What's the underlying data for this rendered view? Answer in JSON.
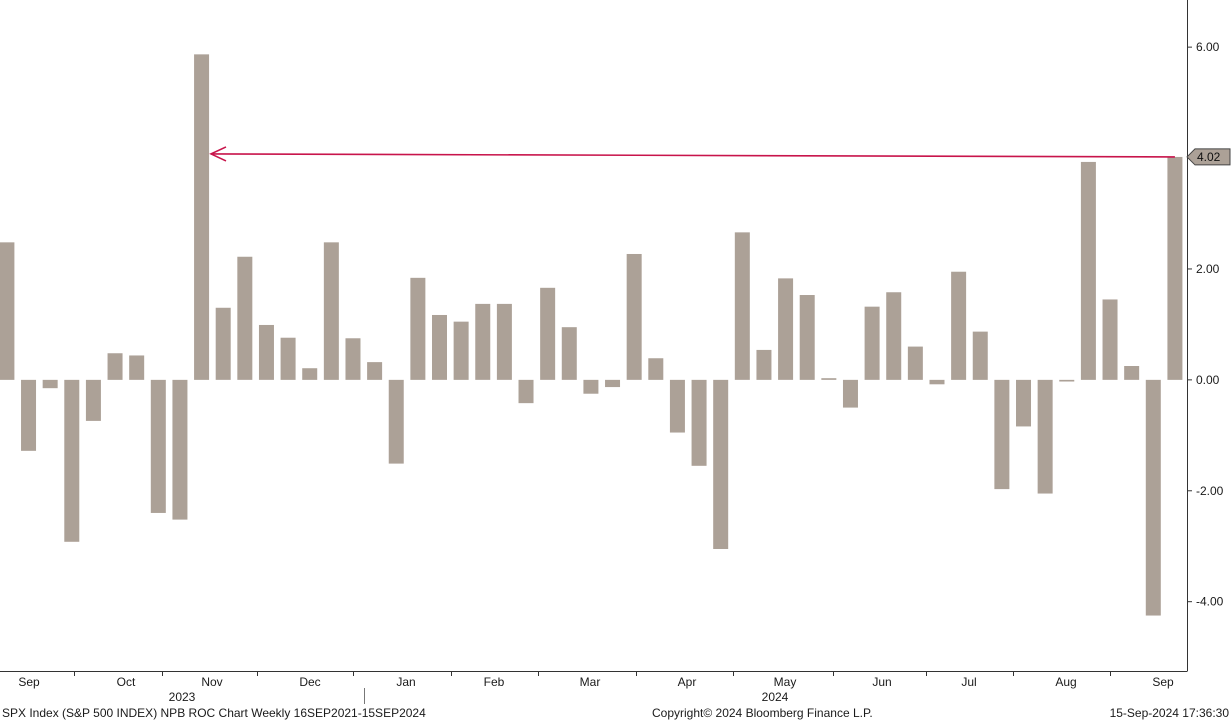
{
  "footer": {
    "left": "SPX Index (S&P 500 INDEX) NPB ROC Chart  Weekly 16SEP2021-15SEP2024",
    "center": "Copyright© 2024 Bloomberg Finance L.P.",
    "right": "15-Sep-2024 17:36:30"
  },
  "colors": {
    "bar": "#aca197",
    "arrow": "#c8144b",
    "axis": "#333333"
  },
  "chart_data": {
    "type": "bar",
    "ylim": [
      -5.25,
      6.85
    ],
    "y_ticks": [
      6,
      4,
      2,
      0,
      -2,
      -4
    ],
    "y_tick_labels": [
      "6.00",
      "4.00",
      "2.00",
      "0.00",
      "-2.00",
      "-4.00"
    ],
    "grid": false,
    "month_labels": [
      "Sep",
      "Oct",
      "Nov",
      "Dec",
      "Jan",
      "Feb",
      "Mar",
      "Apr",
      "May",
      "Jun",
      "Jul",
      "Aug",
      "Sep"
    ],
    "year_labels": [
      "2023",
      "2024"
    ],
    "values": [
      2.48,
      -1.28,
      -0.15,
      -2.92,
      -0.74,
      0.48,
      0.44,
      -2.4,
      -2.52,
      5.87,
      1.3,
      2.22,
      0.99,
      0.76,
      0.21,
      2.48,
      0.75,
      0.32,
      -1.51,
      1.84,
      1.17,
      1.05,
      1.37,
      1.37,
      -0.42,
      1.66,
      0.95,
      -0.25,
      -0.13,
      2.27,
      0.39,
      -0.95,
      -1.55,
      -3.05,
      2.66,
      0.54,
      1.83,
      1.53,
      0.03,
      -0.5,
      1.32,
      1.58,
      0.6,
      -0.08,
      1.95,
      0.87,
      -1.97,
      -0.84,
      -2.05,
      -0.03,
      3.93,
      1.45,
      0.25,
      -4.25,
      4.02
    ],
    "last_value_label": "4.02",
    "annotation": {
      "type": "horizontal-arrow",
      "y": 4.02
    }
  }
}
